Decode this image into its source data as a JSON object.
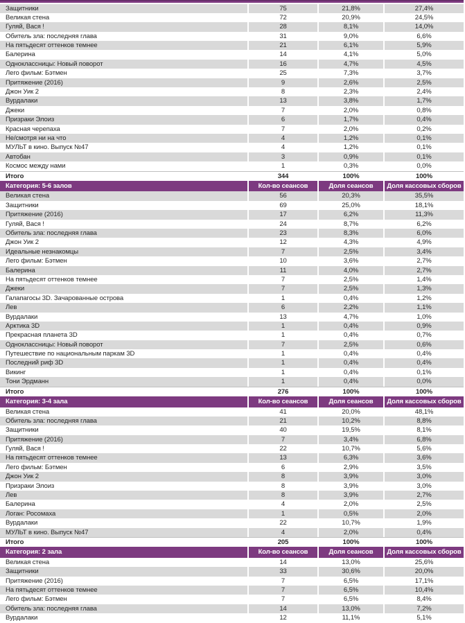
{
  "colors": {
    "header_purple": "#7D3A80",
    "band_gray": "#D9D9D9",
    "text": "#262626",
    "total_border": "#BFBFBF"
  },
  "table": {
    "columns": [
      "Кол-во сеансов",
      "Доля сеансов",
      "Доля кассовых сборов"
    ],
    "sections": [
      {
        "label": null,
        "rows": [
          [
            "Защитники",
            "75",
            "21,8%",
            "27,4%"
          ],
          [
            "Великая стена",
            "72",
            "20,9%",
            "24,5%"
          ],
          [
            "Гуляй, Вася !",
            "28",
            "8,1%",
            "14,0%"
          ],
          [
            "Обитель зла: последняя глава",
            "31",
            "9,0%",
            "6,6%"
          ],
          [
            "На пятьдесят оттенков темнее",
            "21",
            "6,1%",
            "5,9%"
          ],
          [
            "Балерина",
            "14",
            "4,1%",
            "5,0%"
          ],
          [
            "Одноклассницы: Новый поворот",
            "16",
            "4,7%",
            "4,5%"
          ],
          [
            "Лего фильм: Бэтмен",
            "25",
            "7,3%",
            "3,7%"
          ],
          [
            "Притяжение (2016)",
            "9",
            "2,6%",
            "2,5%"
          ],
          [
            "Джон Уик 2",
            "8",
            "2,3%",
            "2,4%"
          ],
          [
            "Вурдалаки",
            "13",
            "3,8%",
            "1,7%"
          ],
          [
            "Джеки",
            "7",
            "2,0%",
            "0,8%"
          ],
          [
            "Призраки Элоиз",
            "6",
            "1,7%",
            "0,4%"
          ],
          [
            "Красная черепаха",
            "7",
            "2,0%",
            "0,2%"
          ],
          [
            "Не/смотря ни на что",
            "4",
            "1,2%",
            "0,1%"
          ],
          [
            "МУЛЬТ в кино. Выпуск №47",
            "4",
            "1,2%",
            "0,1%"
          ],
          [
            "Автобан",
            "3",
            "0,9%",
            "0,1%"
          ],
          [
            "Космос между нами",
            "1",
            "0,3%",
            "0,0%"
          ]
        ],
        "total": [
          "Итого",
          "344",
          "100%",
          "100%"
        ]
      },
      {
        "label": "Категория: 5-6 залов",
        "rows": [
          [
            "Великая стена",
            "56",
            "20,3%",
            "35,5%"
          ],
          [
            "Защитники",
            "69",
            "25,0%",
            "18,1%"
          ],
          [
            "Притяжение (2016)",
            "17",
            "6,2%",
            "11,3%"
          ],
          [
            "Гуляй, Вася !",
            "24",
            "8,7%",
            "6,2%"
          ],
          [
            "Обитель зла: последняя глава",
            "23",
            "8,3%",
            "6,0%"
          ],
          [
            "Джон Уик 2",
            "12",
            "4,3%",
            "4,9%"
          ],
          [
            "Идеальные незнакомцы",
            "7",
            "2,5%",
            "3,4%"
          ],
          [
            "Лего фильм: Бэтмен",
            "10",
            "3,6%",
            "2,7%"
          ],
          [
            "Балерина",
            "11",
            "4,0%",
            "2,7%"
          ],
          [
            "На пятьдесят оттенков темнее",
            "7",
            "2,5%",
            "1,4%"
          ],
          [
            "Джеки",
            "7",
            "2,5%",
            "1,3%"
          ],
          [
            "Галапагосы 3D. Зачарованные острова",
            "1",
            "0,4%",
            "1,2%"
          ],
          [
            "Лев",
            "6",
            "2,2%",
            "1,1%"
          ],
          [
            "Вурдалаки",
            "13",
            "4,7%",
            "1,0%"
          ],
          [
            "Арктика 3D",
            "1",
            "0,4%",
            "0,9%"
          ],
          [
            "Прекрасная планета 3D",
            "1",
            "0,4%",
            "0,7%"
          ],
          [
            "Одноклассницы: Новый поворот",
            "7",
            "2,5%",
            "0,6%"
          ],
          [
            "Путешествие по национальным паркам 3D",
            "1",
            "0,4%",
            "0,4%"
          ],
          [
            "Последний риф 3D",
            "1",
            "0,4%",
            "0,4%"
          ],
          [
            "Викинг",
            "1",
            "0,4%",
            "0,1%"
          ],
          [
            "Тони Эрдманн",
            "1",
            "0,4%",
            "0,0%"
          ]
        ],
        "total": [
          "Итого",
          "276",
          "100%",
          "100%"
        ]
      },
      {
        "label": "Категория: 3-4 зала",
        "rows": [
          [
            "Великая стена",
            "41",
            "20,0%",
            "48,1%"
          ],
          [
            "Обитель зла: последняя глава",
            "21",
            "10,2%",
            "8,8%"
          ],
          [
            "Защитники",
            "40",
            "19,5%",
            "8,1%"
          ],
          [
            "Притяжение (2016)",
            "7",
            "3,4%",
            "6,8%"
          ],
          [
            "Гуляй, Вася !",
            "22",
            "10,7%",
            "5,6%"
          ],
          [
            "На пятьдесят оттенков темнее",
            "13",
            "6,3%",
            "3,6%"
          ],
          [
            "Лего фильм: Бэтмен",
            "6",
            "2,9%",
            "3,5%"
          ],
          [
            "Джон Уик 2",
            "8",
            "3,9%",
            "3,0%"
          ],
          [
            "Призраки Элоиз",
            "8",
            "3,9%",
            "3,0%"
          ],
          [
            "Лев",
            "8",
            "3,9%",
            "2,7%"
          ],
          [
            "Балерина",
            "4",
            "2,0%",
            "2,5%"
          ],
          [
            "Логан: Росомаха",
            "1",
            "0,5%",
            "2,0%"
          ],
          [
            "Вурдалаки",
            "22",
            "10,7%",
            "1,9%"
          ],
          [
            "МУЛЬТ в кино. Выпуск №47",
            "4",
            "2,0%",
            "0,4%"
          ]
        ],
        "total": [
          "Итого",
          "205",
          "100%",
          "100%"
        ]
      },
      {
        "label": "Категория: 2 зала",
        "rows": [
          [
            "Великая стена",
            "14",
            "13,0%",
            "25,6%"
          ],
          [
            "Защитники",
            "33",
            "30,6%",
            "20,0%"
          ],
          [
            "Притяжение (2016)",
            "7",
            "6,5%",
            "17,1%"
          ],
          [
            "На пятьдесят оттенков темнее",
            "7",
            "6,5%",
            "10,4%"
          ],
          [
            "Лего фильм: Бэтмен",
            "7",
            "6,5%",
            "8,4%"
          ],
          [
            "Обитель зла: последняя глава",
            "14",
            "13,0%",
            "7,2%"
          ],
          [
            "Вурдалаки",
            "12",
            "11,1%",
            "5,1%"
          ]
        ],
        "total": null
      }
    ]
  }
}
